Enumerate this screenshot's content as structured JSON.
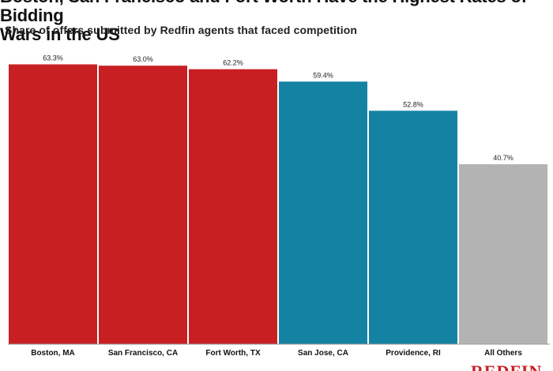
{
  "chart_data": {
    "type": "bar",
    "title": "Boston, San Francisco and Fort Worth Have the Highest Rates of Bidding\nWars in the US",
    "subtitle": "Share of offers submitted by Redfin agents that faced competition",
    "categories": [
      "Boston, MA",
      "San Francisco, CA",
      "Fort Worth, TX",
      "San Jose, CA",
      "Providence, RI",
      "All Others"
    ],
    "values": [
      63.3,
      63.0,
      62.2,
      59.4,
      52.8,
      40.7
    ],
    "value_labels": [
      "63.3%",
      "63.0%",
      "62.2%",
      "59.4%",
      "52.8%",
      "40.7%"
    ],
    "colors": [
      "#c82022",
      "#c82022",
      "#c82022",
      "#1483a3",
      "#1483a3",
      "#b3b3b3"
    ],
    "xlabel": "",
    "ylabel": "",
    "ylim": [
      0,
      65
    ],
    "grid": false,
    "legend": "none"
  },
  "brand": {
    "logo_text": "REDFIN",
    "color": "#c82022"
  }
}
